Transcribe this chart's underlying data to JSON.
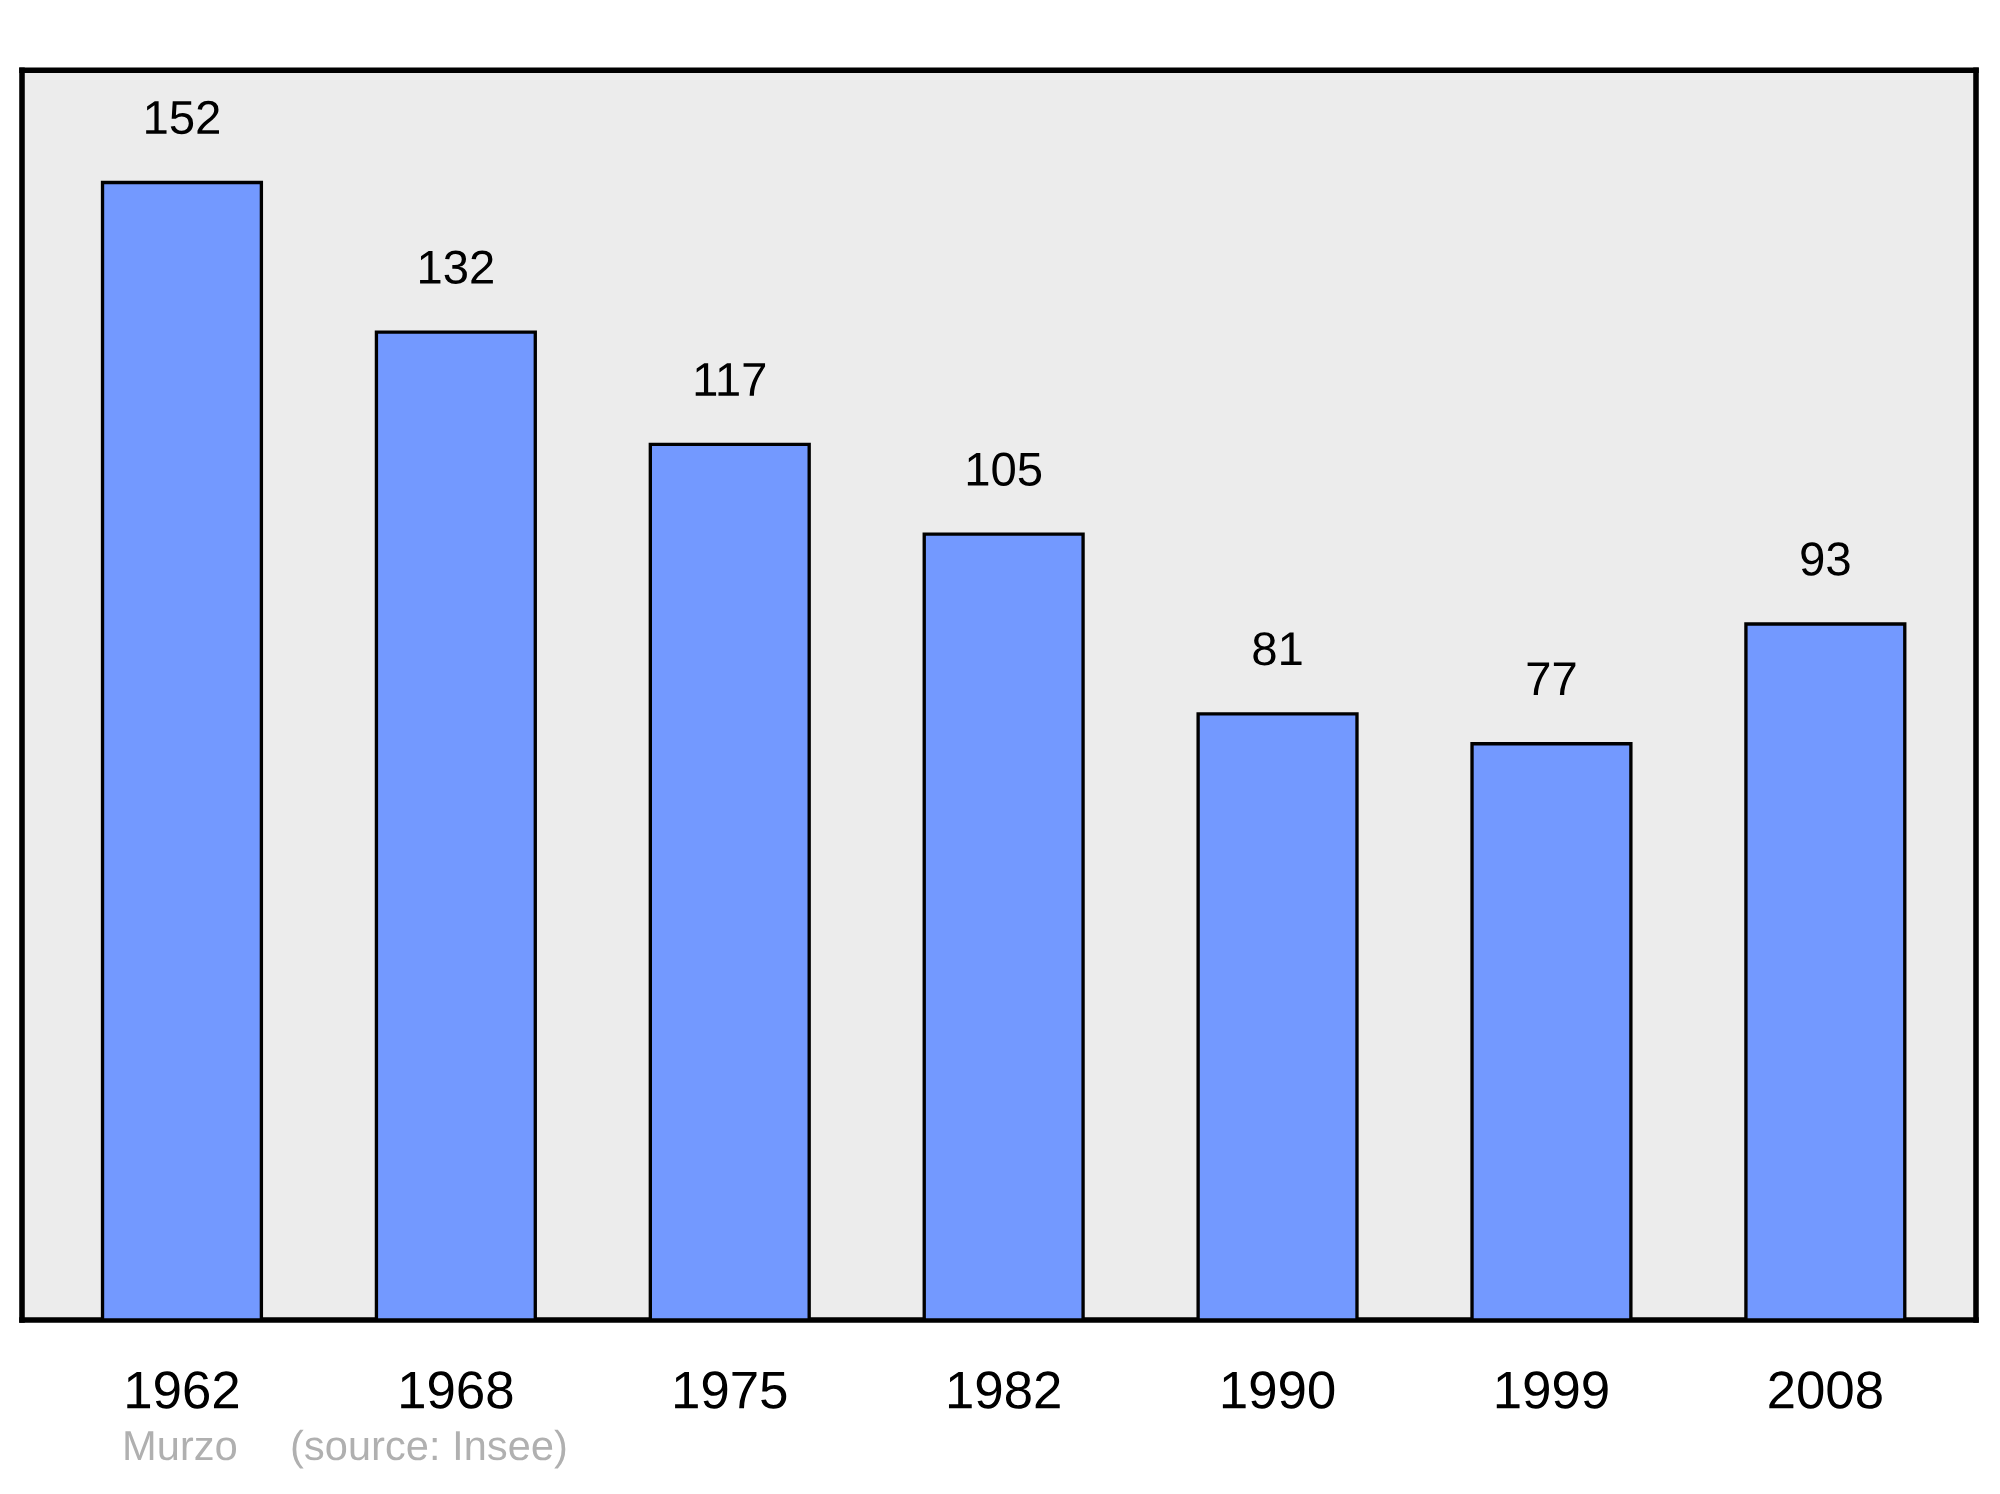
{
  "chart_data": {
    "type": "bar",
    "categories": [
      "1962",
      "1968",
      "1975",
      "1982",
      "1990",
      "1999",
      "2008"
    ],
    "values": [
      152,
      132,
      117,
      105,
      81,
      77,
      93
    ],
    "color": "#7399ff",
    "data_labels": true,
    "ylim": [
      0,
      167
    ],
    "tick_labels": "x",
    "grid": false,
    "annotations": [
      "Murzo",
      "(source: Insee)"
    ]
  }
}
